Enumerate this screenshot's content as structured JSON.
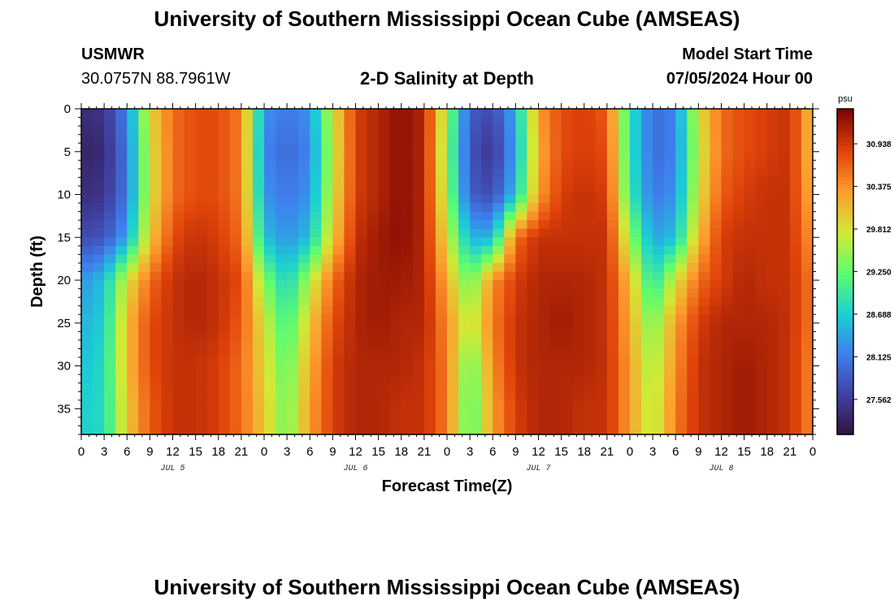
{
  "header": {
    "title": "University of Southern Mississippi Ocean Cube (AMSEAS)",
    "station": "USMWR",
    "coords": "30.0757N  88.7961W",
    "subtitle": "2-D Salinity at Depth",
    "start_label": "Model Start Time",
    "start_value": "07/05/2024 Hour 00"
  },
  "footer": {
    "title": "University of Southern Mississippi Ocean Cube (AMSEAS)"
  },
  "chart_data": {
    "type": "heatmap",
    "title": "2-D Salinity at Depth",
    "xlabel": "Forecast Time(Z)",
    "ylabel": "Depth (ft)",
    "xlim": [
      0,
      96
    ],
    "ylim": [
      0,
      38
    ],
    "x_tick_labels": [
      "0",
      "3",
      "6",
      "9",
      "12",
      "15",
      "18",
      "21",
      "0",
      "3",
      "6",
      "9",
      "12",
      "15",
      "18",
      "21",
      "0",
      "3",
      "6",
      "9",
      "12",
      "15",
      "18",
      "21",
      "0",
      "3",
      "6",
      "9",
      "12",
      "15",
      "18",
      "21",
      "0"
    ],
    "y_ticks": [
      0,
      5,
      10,
      15,
      20,
      25,
      30,
      35
    ],
    "day_labels": [
      {
        "label": "JUL 5",
        "hour": 12
      },
      {
        "label": "JUL 6",
        "hour": 36
      },
      {
        "label": "JUL 7",
        "hour": 60
      },
      {
        "label": "JUL 8",
        "hour": 84
      }
    ],
    "colorbar": {
      "unit": "psu",
      "range": [
        27.1,
        31.4
      ],
      "tick_values": [
        "27.562",
        "28.125",
        "28.688",
        "29.250",
        "29.812",
        "30.375",
        "30.938"
      ]
    },
    "grid": {
      "depths_ft": [
        0,
        5,
        10,
        15,
        20,
        25,
        30,
        35,
        38
      ],
      "hours": [
        0,
        3,
        6,
        9,
        12,
        15,
        18,
        21,
        24,
        27,
        30,
        33,
        36,
        39,
        42,
        45,
        48,
        51,
        54,
        57,
        60,
        63,
        66,
        69,
        72,
        75,
        78,
        81,
        84,
        87,
        90,
        93,
        96
      ],
      "salinity_psu": [
        [
          27.4,
          27.5,
          28.2,
          29.9,
          30.6,
          30.8,
          30.8,
          30.5,
          28.3,
          28.1,
          28.3,
          29.8,
          30.9,
          31.1,
          31.3,
          31.1,
          29.5,
          27.9,
          27.7,
          28.5,
          30.3,
          30.8,
          30.9,
          30.7,
          28.9,
          28.0,
          28.2,
          29.8,
          30.6,
          30.8,
          30.9,
          31.0,
          30.0
        ],
        [
          27.3,
          27.4,
          28.1,
          29.8,
          30.6,
          30.8,
          30.8,
          30.5,
          28.2,
          28.0,
          28.2,
          29.7,
          30.9,
          31.1,
          31.3,
          31.1,
          29.4,
          27.8,
          27.5,
          28.4,
          30.2,
          30.8,
          30.9,
          30.8,
          28.9,
          28.0,
          28.2,
          29.7,
          30.6,
          30.8,
          30.9,
          31.0,
          30.0
        ],
        [
          27.4,
          27.5,
          28.1,
          29.8,
          30.6,
          30.8,
          30.8,
          30.5,
          28.3,
          28.1,
          28.3,
          29.8,
          30.9,
          31.1,
          31.3,
          31.1,
          29.5,
          27.9,
          27.7,
          28.6,
          30.3,
          30.9,
          31.0,
          30.9,
          29.0,
          28.1,
          28.3,
          29.8,
          30.7,
          30.9,
          31.0,
          31.0,
          30.1
        ],
        [
          27.7,
          27.8,
          28.4,
          30.0,
          30.8,
          31.0,
          30.9,
          30.6,
          28.6,
          28.3,
          28.6,
          30.0,
          31.0,
          31.2,
          31.3,
          31.1,
          29.8,
          28.5,
          28.5,
          30.6,
          31.0,
          31.0,
          31.0,
          31.0,
          29.5,
          28.4,
          28.6,
          30.1,
          30.9,
          31.0,
          31.0,
          31.0,
          30.3
        ],
        [
          28.3,
          28.6,
          29.8,
          30.6,
          31.0,
          31.1,
          31.0,
          30.8,
          29.4,
          28.7,
          29.6,
          30.6,
          31.1,
          31.2,
          31.2,
          31.1,
          30.2,
          29.2,
          30.4,
          30.9,
          31.1,
          31.1,
          31.1,
          31.0,
          30.1,
          28.8,
          29.8,
          30.6,
          30.9,
          31.1,
          31.0,
          31.0,
          30.5
        ],
        [
          28.5,
          28.7,
          30.1,
          30.8,
          31.0,
          31.1,
          31.0,
          30.7,
          29.8,
          29.0,
          30.0,
          30.8,
          31.1,
          31.2,
          31.1,
          31.1,
          30.4,
          29.6,
          30.5,
          31.0,
          31.1,
          31.2,
          31.1,
          31.0,
          30.2,
          29.3,
          30.3,
          30.9,
          31.1,
          31.1,
          31.1,
          31.0,
          30.5
        ],
        [
          28.6,
          28.8,
          30.1,
          30.8,
          31.0,
          31.0,
          30.9,
          30.6,
          29.9,
          29.2,
          30.2,
          30.9,
          31.1,
          31.1,
          31.1,
          31.0,
          30.5,
          29.2,
          30.4,
          31.0,
          31.1,
          31.1,
          31.1,
          31.0,
          30.3,
          29.5,
          30.4,
          31.0,
          31.1,
          31.2,
          31.1,
          31.0,
          30.4
        ],
        [
          28.7,
          28.8,
          30.0,
          30.7,
          31.0,
          31.0,
          30.9,
          30.6,
          30.0,
          29.3,
          30.3,
          30.9,
          31.1,
          31.1,
          31.0,
          31.0,
          30.5,
          29.1,
          30.3,
          30.9,
          31.1,
          31.1,
          31.0,
          31.0,
          30.3,
          29.6,
          30.5,
          31.0,
          31.1,
          31.2,
          31.1,
          31.0,
          30.4
        ],
        [
          28.7,
          28.8,
          30.0,
          30.7,
          31.0,
          31.0,
          30.9,
          30.6,
          30.0,
          29.3,
          30.3,
          30.9,
          31.1,
          31.1,
          31.0,
          31.0,
          30.5,
          29.1,
          30.3,
          30.9,
          31.1,
          31.1,
          31.0,
          31.0,
          30.3,
          29.6,
          30.5,
          31.0,
          31.1,
          31.2,
          31.1,
          31.0,
          30.4
        ]
      ]
    }
  }
}
